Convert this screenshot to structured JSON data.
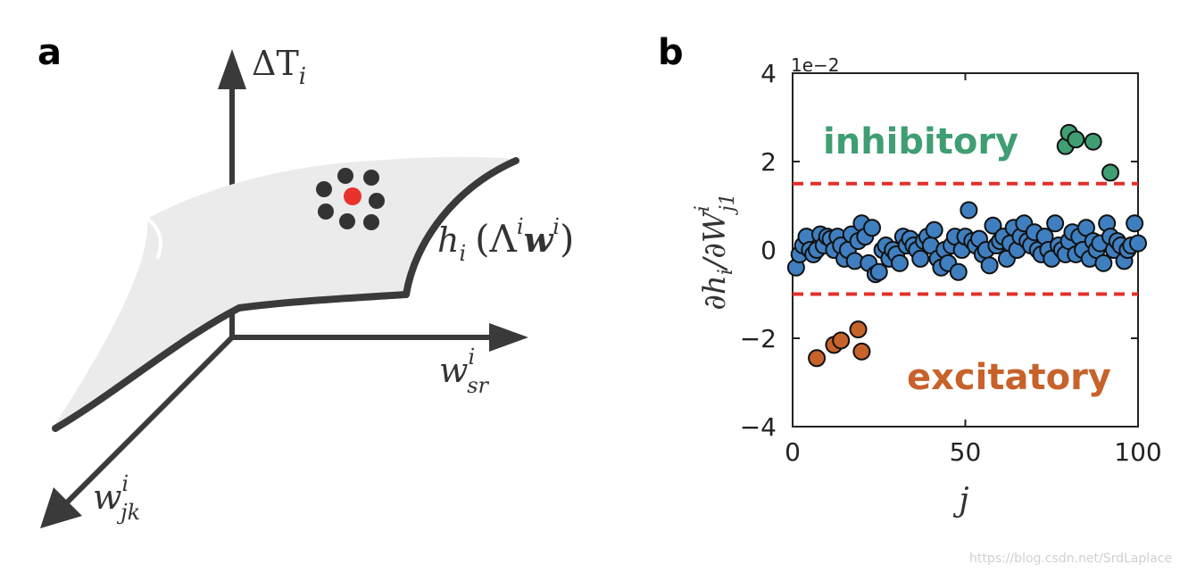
{
  "panel_a": {
    "letter": "a",
    "axis_up_label": "ΔT",
    "axis_up_sub": "i",
    "axis_right_label": "w",
    "axis_right_sup": "i",
    "axis_right_sub": "sr",
    "axis_diag_label": "w",
    "axis_diag_sup": "i",
    "axis_diag_sub": "jk",
    "surface_label_h": "h",
    "surface_label_sub": "i",
    "surface_label_arg": "(Λ",
    "surface_label_arg_sup": "i",
    "surface_label_w": "w",
    "surface_label_w_sup": "i",
    "surface_label_close": ")",
    "colors": {
      "surface": "#ebebeb",
      "edge": "#3a3a3a",
      "dot": "#333333",
      "center": "#e8322b"
    }
  },
  "panel_b": {
    "letter": "b",
    "scale_label": "1e−2",
    "ylabel_num": "∂h",
    "ylabel_num_sub": "i",
    "ylabel_den": "/∂W",
    "ylabel_den_sup": "i",
    "ylabel_den_sub": "j1",
    "xlabel": "j",
    "inhibitory_label": "inhibitory",
    "excitatory_label": "excitatory"
  },
  "watermark": "https://blog.csdn.net/SrdLaplace",
  "chart_data": {
    "type": "scatter",
    "xlim": [
      0,
      100
    ],
    "ylim": [
      -4,
      4
    ],
    "xticks": [
      "0",
      "50",
      "100"
    ],
    "yticks": [
      "4",
      "2",
      "0",
      "−2",
      "−4"
    ],
    "ytick_values": [
      4,
      2,
      0,
      -2,
      -4
    ],
    "xtick_values": [
      0,
      50,
      100
    ],
    "thresholds": [
      1.5,
      -1.0
    ],
    "grid": false,
    "colors": {
      "main": "#3f7fbf",
      "inhibitory": "#3f9e72",
      "excitatory": "#c7622b",
      "threshold": "#e3302b"
    },
    "series": [
      {
        "group": "main",
        "x": [
          1,
          2,
          3,
          4,
          5,
          6,
          7,
          8,
          9,
          10,
          11,
          12,
          13,
          14,
          15,
          16,
          17,
          18,
          19,
          20,
          21,
          22,
          23,
          24,
          25,
          26,
          27,
          28,
          29,
          30,
          31,
          32,
          33,
          34,
          35,
          36,
          37,
          38,
          39,
          40,
          41,
          42,
          43,
          44,
          45,
          46,
          47,
          48,
          49,
          50,
          51,
          52,
          53,
          54,
          55,
          56,
          57,
          58,
          59,
          60,
          61,
          62,
          63,
          64,
          65,
          66,
          67,
          68,
          69,
          70,
          71,
          72,
          73,
          74,
          75,
          76,
          77,
          78,
          79,
          80,
          81,
          82,
          83,
          84,
          85,
          86,
          87,
          88,
          89,
          90,
          91,
          92,
          93,
          94,
          95,
          96,
          97,
          98,
          99,
          100
        ],
        "y": [
          -0.4,
          -0.1,
          0.1,
          0.3,
          0.0,
          -0.1,
          0.0,
          0.35,
          0.1,
          0.3,
          0.25,
          0.0,
          0.3,
          0.1,
          -0.2,
          0.0,
          0.35,
          -0.25,
          0.2,
          0.6,
          0.3,
          -0.3,
          0.5,
          -0.55,
          -0.5,
          0.0,
          0.1,
          -0.2,
          0.0,
          -0.1,
          -0.3,
          0.3,
          0.1,
          0.25,
          0.1,
          0.0,
          -0.2,
          0.2,
          0.3,
          0.1,
          0.45,
          -0.2,
          -0.4,
          0.0,
          -0.3,
          0.1,
          0.3,
          -0.5,
          0.0,
          0.3,
          0.9,
          0.2,
          0.1,
          0.25,
          -0.1,
          0.0,
          -0.35,
          0.55,
          0.1,
          0.2,
          0.3,
          -0.2,
          0.15,
          0.5,
          0.0,
          0.3,
          0.6,
          0.2,
          0.1,
          0.4,
          0.0,
          -0.1,
          0.3,
          0.0,
          -0.2,
          0.6,
          0.1,
          0.0,
          -0.1,
          0.2,
          0.4,
          -0.1,
          0.3,
          0.0,
          0.5,
          -0.2,
          0.2,
          0.0,
          0.15,
          -0.3,
          0.6,
          0.3,
          0.0,
          0.2,
          0.1,
          -0.25,
          0.0,
          0.1,
          0.6,
          0.15
        ]
      },
      {
        "group": "inhibitory",
        "x": [
          79,
          80,
          82,
          87,
          92
        ],
        "y": [
          2.35,
          2.65,
          2.5,
          2.45,
          1.75
        ]
      },
      {
        "group": "excitatory",
        "x": [
          7,
          12,
          14,
          19,
          20
        ],
        "y": [
          -2.45,
          -2.15,
          -2.05,
          -1.8,
          -2.3
        ]
      }
    ]
  }
}
